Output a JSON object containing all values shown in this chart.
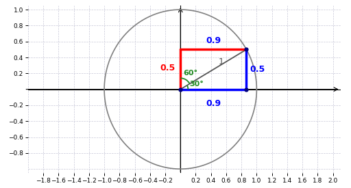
{
  "xlim": [
    -2.0,
    2.1
  ],
  "ylim": [
    -1.05,
    1.05
  ],
  "xticks": [
    -1.8,
    -1.6,
    -1.4,
    -1.2,
    -1.0,
    -0.8,
    -0.6,
    -0.4,
    -0.2,
    0.2,
    0.4,
    0.6,
    0.8,
    1.0,
    1.2,
    1.4,
    1.6,
    1.8,
    2.0
  ],
  "yticks": [
    -0.8,
    -0.6,
    -0.4,
    -0.2,
    0.2,
    0.4,
    0.6,
    0.8,
    1.0
  ],
  "cos30": 0.866,
  "sin30": 0.5,
  "label_09_top": "0.9",
  "label_09_bottom": "0.9",
  "label_05_left": "0.5",
  "label_05_right": "0.5",
  "label_1": "1",
  "label_60": "60°",
  "label_30": "30°",
  "color_red": "#ff0000",
  "color_blue": "#0000ff",
  "color_green": "#228B22",
  "color_circle": "#808080",
  "color_grid": "#c8c8d8",
  "color_axis": "#000000",
  "color_hyp": "#555555",
  "figsize": [
    5.12,
    2.75
  ],
  "dpi": 100
}
